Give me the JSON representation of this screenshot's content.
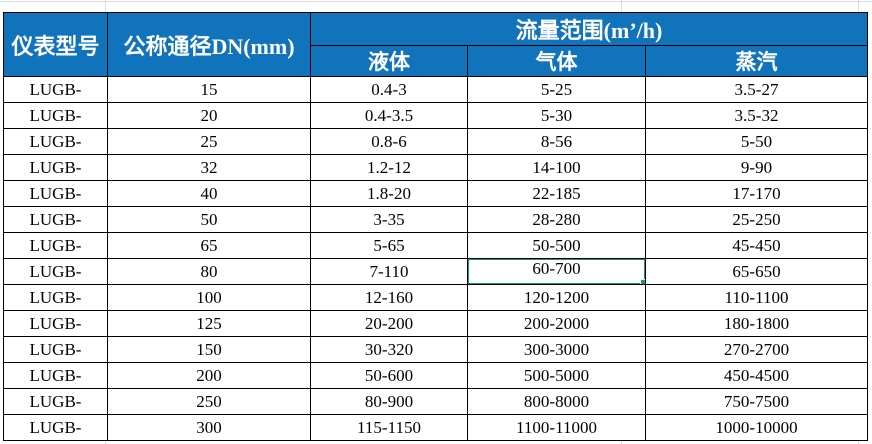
{
  "table": {
    "headers": {
      "col_model": "仪表型号",
      "col_dn": "公称通径DN(mm)",
      "flow_range_group": "流量范围(m’/h)",
      "col_liquid": "液体",
      "col_gas": "气体",
      "col_steam": "蒸汽"
    },
    "rows": [
      {
        "model": "LUGB-",
        "dn": "15",
        "liquid": "0.4-3",
        "gas": "5-25",
        "steam": "3.5-27"
      },
      {
        "model": "LUGB-",
        "dn": "20",
        "liquid": "0.4-3.5",
        "gas": "5-30",
        "steam": "3.5-32"
      },
      {
        "model": "LUGB-",
        "dn": "25",
        "liquid": "0.8-6",
        "gas": "8-56",
        "steam": "5-50"
      },
      {
        "model": "LUGB-",
        "dn": "32",
        "liquid": "1.2-12",
        "gas": "14-100",
        "steam": "9-90"
      },
      {
        "model": "LUGB-",
        "dn": "40",
        "liquid": "1.8-20",
        "gas": "22-185",
        "steam": "17-170"
      },
      {
        "model": "LUGB-",
        "dn": "50",
        "liquid": "3-35",
        "gas": "28-280",
        "steam": "25-250"
      },
      {
        "model": "LUGB-",
        "dn": "65",
        "liquid": "5-65",
        "gas": "50-500",
        "steam": "45-450"
      },
      {
        "model": "LUGB-",
        "dn": "80",
        "liquid": "7-110",
        "gas": "60-700",
        "steam": "65-650"
      },
      {
        "model": "LUGB-",
        "dn": "100",
        "liquid": "12-160",
        "gas": "120-1200",
        "steam": "110-1100"
      },
      {
        "model": "LUGB-",
        "dn": "125",
        "liquid": "20-200",
        "gas": "200-2000",
        "steam": "180-1800"
      },
      {
        "model": "LUGB-",
        "dn": "150",
        "liquid": "30-320",
        "gas": "300-3000",
        "steam": "270-2700"
      },
      {
        "model": "LUGB-",
        "dn": "200",
        "liquid": "50-600",
        "gas": "500-5000",
        "steam": "450-4500"
      },
      {
        "model": "LUGB-",
        "dn": "250",
        "liquid": "80-900",
        "gas": "800-8000",
        "steam": "750-7500"
      },
      {
        "model": "LUGB-",
        "dn": "300",
        "liquid": "115-1150",
        "gas": "1100-11000",
        "steam": "1000-10000"
      }
    ],
    "selection": {
      "row_dn": "80",
      "column": "gas",
      "value": "60-700"
    }
  },
  "colors": {
    "header_bg": "#1173BC",
    "header_text": "#ffffff",
    "cell_text": "#000000",
    "border": "#000000",
    "selection_green": "#169C64",
    "gridline": "#d9d9d9"
  }
}
